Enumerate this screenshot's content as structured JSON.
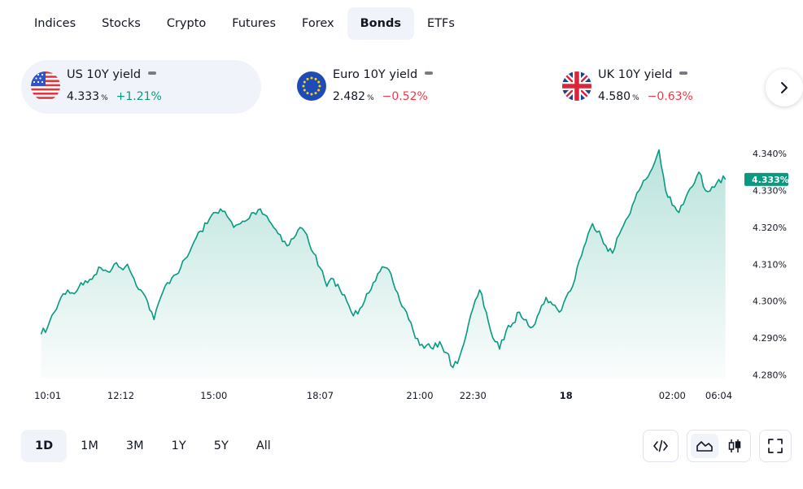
{
  "top_tabs": [
    {
      "label": "Indices",
      "active": false
    },
    {
      "label": "Stocks",
      "active": false
    },
    {
      "label": "Crypto",
      "active": false
    },
    {
      "label": "Futures",
      "active": false
    },
    {
      "label": "Forex",
      "active": false
    },
    {
      "label": "Bonds",
      "active": true
    },
    {
      "label": "ETFs",
      "active": false
    }
  ],
  "tickers": [
    {
      "name": "US 10Y yield",
      "value": "4.333",
      "unit": "%",
      "change": "+1.21%",
      "direction": "up",
      "flag": "us-flag-icon",
      "active": true
    },
    {
      "name": "Euro 10Y yield",
      "value": "2.482",
      "unit": "%",
      "change": "−0.52%",
      "direction": "down",
      "flag": "eu-flag-icon",
      "active": false
    },
    {
      "name": "UK 10Y yield",
      "value": "4.580",
      "unit": "%",
      "change": "−0.63%",
      "direction": "down",
      "flag": "uk-flag-icon",
      "active": false
    }
  ],
  "ranges": [
    {
      "label": "1D",
      "active": true
    },
    {
      "label": "1M",
      "active": false
    },
    {
      "label": "3M",
      "active": false
    },
    {
      "label": "1Y",
      "active": false
    },
    {
      "label": "5Y",
      "active": false
    },
    {
      "label": "All",
      "active": false
    }
  ],
  "tools": {
    "embed_icon": "code-icon",
    "area_icon": "area-chart-icon",
    "candles_icon": "candlestick-icon",
    "fullscreen_icon": "fullscreen-icon",
    "active_style": "area"
  },
  "colors": {
    "line": "#089981",
    "up": "#089981",
    "down": "#f23645",
    "active_bg": "#f0f3fa"
  },
  "chart_data": {
    "type": "area",
    "series": [
      {
        "name": "US 10Y yield"
      }
    ],
    "y_ticks": [
      "4.280%",
      "4.290%",
      "4.300%",
      "4.310%",
      "4.320%",
      "4.330%",
      "4.340%"
    ],
    "ylim": [
      4.279,
      4.342
    ],
    "current_value": 4.333,
    "current_label": "4.333%",
    "x_ticks": [
      {
        "label": "10:01",
        "t": 1
      },
      {
        "label": "12:12",
        "t": 12
      },
      {
        "label": "15:00",
        "t": 26
      },
      {
        "label": "18:07",
        "t": 42
      },
      {
        "label": "21:00",
        "t": 57
      },
      {
        "label": "22:30",
        "t": 65
      },
      {
        "label": "18",
        "t": 79,
        "bold": true
      },
      {
        "label": "02:00",
        "t": 95
      },
      {
        "label": "06:04",
        "t": 102
      }
    ],
    "t_range": [
      -3,
      105
    ],
    "values": [
      4.291,
      4.293,
      4.297,
      4.301,
      4.303,
      4.302,
      4.305,
      4.305,
      4.307,
      4.309,
      4.308,
      4.31,
      4.309,
      4.31,
      4.306,
      4.303,
      4.3,
      4.295,
      4.301,
      4.305,
      4.307,
      4.309,
      4.312,
      4.316,
      4.319,
      4.321,
      4.324,
      4.325,
      4.323,
      4.32,
      4.321,
      4.322,
      4.324,
      4.325,
      4.323,
      4.32,
      4.318,
      4.315,
      4.317,
      4.32,
      4.318,
      4.313,
      4.309,
      4.304,
      4.306,
      4.303,
      4.3,
      4.296,
      4.298,
      4.302,
      4.305,
      4.308,
      4.309,
      4.305,
      4.3,
      4.297,
      4.292,
      4.288,
      4.288,
      4.287,
      4.289,
      4.286,
      4.282,
      4.285,
      4.291,
      4.298,
      4.303,
      4.297,
      4.29,
      4.287,
      4.292,
      4.294,
      4.297,
      4.295,
      4.293,
      4.297,
      4.301,
      4.299,
      4.297,
      4.301,
      4.304,
      4.311,
      4.316,
      4.321,
      4.319,
      4.315,
      4.313,
      4.318,
      4.322,
      4.326,
      4.33,
      4.333,
      4.336,
      4.341,
      4.33,
      4.326,
      4.324,
      4.328,
      4.331,
      4.335,
      4.33,
      4.331,
      4.333,
      4.333
    ]
  }
}
